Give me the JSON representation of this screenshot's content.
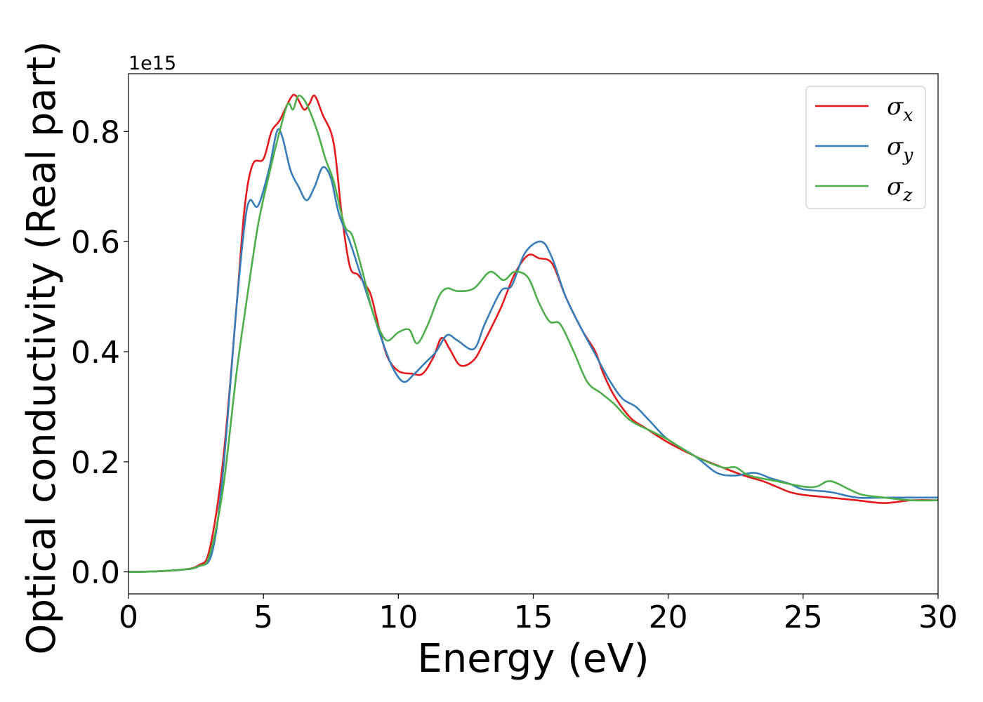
{
  "chart_data": {
    "type": "line",
    "xlabel": "Energy (eV)",
    "ylabel": "Optical conductivity (Real part)",
    "y_offset_text": "1e15",
    "xlim": [
      0,
      30
    ],
    "ylim": [
      -0.04,
      0.905
    ],
    "x_ticks": [
      "0",
      "5",
      "10",
      "15",
      "20",
      "25",
      "30"
    ],
    "y_ticks": [
      "0.0",
      "0.2",
      "0.4",
      "0.6",
      "0.8"
    ],
    "legend_position": "top-right",
    "grid": false,
    "series": [
      {
        "name": "σx",
        "symbol": "σ",
        "subscript": "x",
        "color": "#e41a1c",
        "points": [
          [
            0,
            0
          ],
          [
            1,
            0.001
          ],
          [
            2,
            0.004
          ],
          [
            2.6,
            0.012
          ],
          [
            3,
            0.04
          ],
          [
            3.5,
            0.2
          ],
          [
            4,
            0.48
          ],
          [
            4.3,
            0.66
          ],
          [
            4.6,
            0.74
          ],
          [
            5,
            0.75
          ],
          [
            5.3,
            0.8
          ],
          [
            5.6,
            0.82
          ],
          [
            6,
            0.86
          ],
          [
            6.2,
            0.865
          ],
          [
            6.5,
            0.84
          ],
          [
            6.7,
            0.85
          ],
          [
            6.9,
            0.865
          ],
          [
            7.2,
            0.83
          ],
          [
            7.6,
            0.78
          ],
          [
            7.9,
            0.65
          ],
          [
            8.2,
            0.555
          ],
          [
            8.5,
            0.54
          ],
          [
            8.8,
            0.52
          ],
          [
            9,
            0.5
          ],
          [
            9.3,
            0.44
          ],
          [
            9.6,
            0.39
          ],
          [
            10,
            0.365
          ],
          [
            10.5,
            0.36
          ],
          [
            10.9,
            0.36
          ],
          [
            11.3,
            0.39
          ],
          [
            11.6,
            0.425
          ],
          [
            11.9,
            0.405
          ],
          [
            12.3,
            0.375
          ],
          [
            12.8,
            0.385
          ],
          [
            13.2,
            0.42
          ],
          [
            13.8,
            0.48
          ],
          [
            14.3,
            0.54
          ],
          [
            14.8,
            0.575
          ],
          [
            15.2,
            0.57
          ],
          [
            15.7,
            0.56
          ],
          [
            16.2,
            0.5
          ],
          [
            16.8,
            0.44
          ],
          [
            17.3,
            0.4
          ],
          [
            17.6,
            0.36
          ],
          [
            18,
            0.32
          ],
          [
            18.6,
            0.28
          ],
          [
            19.2,
            0.26
          ],
          [
            20,
            0.235
          ],
          [
            21,
            0.21
          ],
          [
            22,
            0.19
          ],
          [
            22.8,
            0.175
          ],
          [
            23.5,
            0.165
          ],
          [
            24,
            0.155
          ],
          [
            24.5,
            0.145
          ],
          [
            25,
            0.14
          ],
          [
            26,
            0.135
          ],
          [
            27,
            0.13
          ],
          [
            28,
            0.125
          ],
          [
            29,
            0.13
          ],
          [
            30,
            0.13
          ]
        ]
      },
      {
        "name": "σy",
        "symbol": "σ",
        "subscript": "y",
        "color": "#377eb8",
        "points": [
          [
            0,
            0
          ],
          [
            1,
            0.001
          ],
          [
            2,
            0.004
          ],
          [
            2.6,
            0.01
          ],
          [
            3.1,
            0.035
          ],
          [
            3.5,
            0.18
          ],
          [
            4,
            0.48
          ],
          [
            4.3,
            0.63
          ],
          [
            4.5,
            0.675
          ],
          [
            4.8,
            0.665
          ],
          [
            5.2,
            0.73
          ],
          [
            5.5,
            0.8
          ],
          [
            5.7,
            0.79
          ],
          [
            6,
            0.73
          ],
          [
            6.3,
            0.7
          ],
          [
            6.6,
            0.675
          ],
          [
            6.9,
            0.7
          ],
          [
            7.2,
            0.735
          ],
          [
            7.5,
            0.715
          ],
          [
            7.8,
            0.65
          ],
          [
            8.2,
            0.6
          ],
          [
            8.6,
            0.54
          ],
          [
            9,
            0.48
          ],
          [
            9.4,
            0.42
          ],
          [
            9.8,
            0.37
          ],
          [
            10.2,
            0.345
          ],
          [
            10.6,
            0.36
          ],
          [
            11,
            0.38
          ],
          [
            11.4,
            0.4
          ],
          [
            11.8,
            0.43
          ],
          [
            12.2,
            0.42
          ],
          [
            12.8,
            0.405
          ],
          [
            13.2,
            0.45
          ],
          [
            13.8,
            0.51
          ],
          [
            14.2,
            0.52
          ],
          [
            14.7,
            0.58
          ],
          [
            15.3,
            0.6
          ],
          [
            15.7,
            0.57
          ],
          [
            16.2,
            0.5
          ],
          [
            16.8,
            0.44
          ],
          [
            17.3,
            0.395
          ],
          [
            17.8,
            0.35
          ],
          [
            18.3,
            0.315
          ],
          [
            18.8,
            0.3
          ],
          [
            19.3,
            0.275
          ],
          [
            20,
            0.24
          ],
          [
            21,
            0.21
          ],
          [
            21.8,
            0.18
          ],
          [
            22.5,
            0.175
          ],
          [
            23.2,
            0.18
          ],
          [
            23.8,
            0.17
          ],
          [
            24.5,
            0.16
          ],
          [
            25,
            0.15
          ],
          [
            26,
            0.145
          ],
          [
            27,
            0.135
          ],
          [
            28,
            0.135
          ],
          [
            29,
            0.135
          ],
          [
            30,
            0.135
          ]
        ]
      },
      {
        "name": "σz",
        "symbol": "σ",
        "subscript": "z",
        "color": "#4daf4a",
        "points": [
          [
            0,
            0
          ],
          [
            1,
            0.001
          ],
          [
            2,
            0.004
          ],
          [
            2.6,
            0.01
          ],
          [
            3,
            0.03
          ],
          [
            3.5,
            0.15
          ],
          [
            4,
            0.36
          ],
          [
            4.4,
            0.5
          ],
          [
            4.8,
            0.63
          ],
          [
            5.2,
            0.72
          ],
          [
            5.6,
            0.8
          ],
          [
            5.9,
            0.85
          ],
          [
            6.1,
            0.84
          ],
          [
            6.3,
            0.865
          ],
          [
            6.6,
            0.85
          ],
          [
            7,
            0.8
          ],
          [
            7.3,
            0.75
          ],
          [
            7.6,
            0.71
          ],
          [
            8,
            0.63
          ],
          [
            8.3,
            0.61
          ],
          [
            8.7,
            0.54
          ],
          [
            9,
            0.48
          ],
          [
            9.3,
            0.44
          ],
          [
            9.6,
            0.42
          ],
          [
            10,
            0.435
          ],
          [
            10.4,
            0.44
          ],
          [
            10.7,
            0.415
          ],
          [
            11.1,
            0.45
          ],
          [
            11.5,
            0.5
          ],
          [
            11.8,
            0.515
          ],
          [
            12.2,
            0.51
          ],
          [
            12.8,
            0.515
          ],
          [
            13.4,
            0.545
          ],
          [
            13.9,
            0.53
          ],
          [
            14.3,
            0.545
          ],
          [
            14.8,
            0.535
          ],
          [
            15.2,
            0.49
          ],
          [
            15.6,
            0.455
          ],
          [
            16,
            0.45
          ],
          [
            16.5,
            0.4
          ],
          [
            17,
            0.345
          ],
          [
            17.5,
            0.325
          ],
          [
            18,
            0.305
          ],
          [
            18.6,
            0.275
          ],
          [
            19.4,
            0.255
          ],
          [
            20,
            0.24
          ],
          [
            21,
            0.21
          ],
          [
            22,
            0.19
          ],
          [
            22.5,
            0.19
          ],
          [
            23,
            0.175
          ],
          [
            24,
            0.165
          ],
          [
            25,
            0.155
          ],
          [
            25.5,
            0.155
          ],
          [
            26,
            0.165
          ],
          [
            26.7,
            0.15
          ],
          [
            27.2,
            0.14
          ],
          [
            28,
            0.135
          ],
          [
            29,
            0.13
          ],
          [
            30,
            0.13
          ]
        ]
      }
    ]
  }
}
